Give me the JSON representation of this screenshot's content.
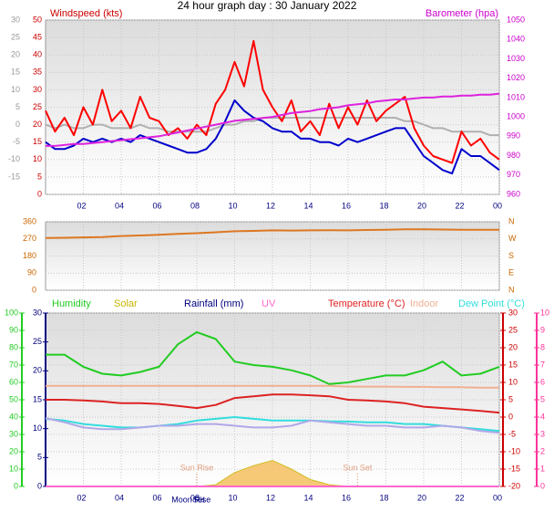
{
  "chart_data": [
    {
      "type": "line",
      "title": "24 hour graph day : 30 January 2022",
      "ylabel": "Windspeed (kts)",
      "y2label": "Barometer (hpa)",
      "x": [
        0,
        0.5,
        1,
        1.5,
        2,
        2.5,
        3,
        3.5,
        4,
        4.5,
        5,
        5.5,
        6,
        6.5,
        7,
        7.5,
        8,
        8.5,
        9,
        9.5,
        10,
        10.5,
        11,
        11.5,
        12,
        12.5,
        13,
        13.5,
        14,
        14.5,
        15,
        15.5,
        16,
        16.5,
        17,
        17.5,
        18,
        18.5,
        19,
        19.5,
        20,
        20.5,
        21,
        21.5,
        22,
        22.5,
        23,
        23.5,
        24
      ],
      "xlim": [
        0,
        24
      ],
      "xticks": [
        {
          "value": 2,
          "label": "02"
        },
        {
          "value": 4,
          "label": "04"
        },
        {
          "value": 6,
          "label": "06"
        },
        {
          "value": 8,
          "label": "08"
        },
        10,
        12,
        14,
        16,
        18,
        20,
        22,
        {
          "value": 24,
          "label": "00"
        }
      ],
      "ylim": [
        0,
        50
      ],
      "yticks": [
        50,
        45,
        40,
        35,
        30,
        25,
        20,
        15,
        10,
        5,
        0
      ],
      "ycolor": "#cc0000",
      "y2lim": [
        960,
        1050
      ],
      "y2ticks": [
        1050,
        1040,
        1030,
        1020,
        1010,
        1000,
        990,
        980,
        970,
        960
      ],
      "y2color": "#cc00cc",
      "y3lim": [
        -20,
        30
      ],
      "y3ticks": [
        30,
        25,
        20,
        15,
        10,
        5,
        0,
        -5,
        -10,
        -15
      ],
      "y3color": "#999999",
      "grid": true,
      "series": [
        {
          "color": "#b0b0b0",
          "axis": "y3",
          "values": [
            0,
            -1,
            0,
            -1,
            -1,
            0,
            0,
            -1,
            -1,
            -1,
            0,
            -1,
            -1,
            -2,
            -2,
            -2,
            -2,
            -2,
            -1,
            0,
            0,
            1,
            1,
            2,
            2,
            2,
            2,
            2,
            2,
            2,
            2,
            2,
            2,
            2,
            2,
            2,
            2,
            2,
            1,
            1,
            0,
            -1,
            -1,
            -2,
            -2,
            -2,
            -2,
            -3,
            -3
          ]
        },
        {
          "color": "#ff0000",
          "axis": "y",
          "values": [
            24,
            18,
            22,
            17,
            25,
            20,
            30,
            21,
            24,
            19,
            28,
            22,
            21,
            17,
            19,
            16,
            20,
            17,
            26,
            30,
            38,
            31,
            44,
            30,
            25,
            21,
            27,
            18,
            21,
            17,
            26,
            19,
            25,
            20,
            27,
            21,
            24,
            26,
            28,
            19,
            14,
            11,
            10,
            9,
            18,
            14,
            16,
            12,
            10
          ]
        },
        {
          "color": "#0000cc",
          "axis": "y",
          "values": [
            15,
            13,
            13,
            14,
            16,
            15,
            16,
            15,
            16,
            15,
            17,
            16,
            15,
            14,
            13,
            12,
            12,
            13,
            16,
            21,
            27,
            24,
            22,
            21,
            19,
            18,
            18,
            16,
            16,
            15,
            15,
            14,
            16,
            15,
            16,
            17,
            18,
            19,
            19,
            15,
            11,
            9,
            7,
            6,
            13,
            11,
            11,
            9,
            7
          ]
        },
        {
          "color": "#dd22dd",
          "axis": "y2",
          "values": [
            985,
            985,
            985.5,
            986,
            986,
            986.5,
            987,
            987.5,
            988,
            988.5,
            989,
            989.5,
            990,
            991,
            992,
            993,
            994,
            995,
            996,
            997,
            998,
            998.5,
            999,
            999.5,
            1000,
            1001,
            1002,
            1002.5,
            1003,
            1004,
            1004.5,
            1005,
            1006,
            1006.5,
            1007,
            1008,
            1008.5,
            1009,
            1009,
            1009.5,
            1010,
            1010,
            1010.5,
            1010.5,
            1011,
            1011,
            1011.5,
            1011.5,
            1012
          ]
        }
      ]
    },
    {
      "type": "line",
      "x": [
        0,
        1,
        2,
        3,
        4,
        5,
        6,
        7,
        8,
        9,
        10,
        11,
        12,
        13,
        14,
        15,
        16,
        17,
        18,
        19,
        20,
        21,
        22,
        23,
        24
      ],
      "xlim": [
        0,
        24
      ],
      "xticks": [
        {
          "value": 2,
          "label": "02"
        },
        {
          "value": 4,
          "label": "04"
        },
        {
          "value": 6,
          "label": "06"
        },
        {
          "value": 8,
          "label": "08"
        },
        10,
        12,
        14,
        16,
        18,
        20,
        22,
        {
          "value": 24,
          "label": "00"
        }
      ],
      "ylim": [
        0,
        360
      ],
      "yticks": [
        360,
        270,
        180,
        90,
        0
      ],
      "ycolor": "#cc6600",
      "y2lim": [
        0,
        360
      ],
      "y2ticks": [
        {
          "value": 360,
          "label": "N"
        },
        {
          "value": 270,
          "label": "W"
        },
        {
          "value": 180,
          "label": "S"
        },
        {
          "value": 90,
          "label": "E"
        },
        {
          "value": 0,
          "label": "N"
        }
      ],
      "y2color": "#cc6600",
      "grid": true,
      "series": [
        {
          "color": "#dd7722",
          "axis": "y",
          "values": [
            275,
            276,
            278,
            280,
            285,
            288,
            292,
            296,
            300,
            305,
            310,
            312,
            315,
            314,
            315,
            316,
            315,
            317,
            318,
            320,
            320,
            319,
            318,
            318,
            318
          ]
        }
      ]
    },
    {
      "type": "line",
      "x": [
        0,
        1,
        2,
        3,
        4,
        5,
        6,
        7,
        8,
        9,
        10,
        11,
        12,
        13,
        14,
        15,
        16,
        17,
        18,
        19,
        20,
        21,
        22,
        23,
        24
      ],
      "xlim": [
        0,
        24
      ],
      "xticks": [
        {
          "value": 2,
          "label": "02"
        },
        {
          "value": 4,
          "label": "04"
        },
        {
          "value": 6,
          "label": "06"
        },
        {
          "value": 8,
          "label": "08"
        },
        10,
        12,
        14,
        16,
        18,
        20,
        22,
        {
          "value": 24,
          "label": "00"
        }
      ],
      "ylim": [
        0,
        100
      ],
      "yticks": [
        100,
        90,
        80,
        70,
        60,
        50,
        40,
        30,
        20,
        10,
        0
      ],
      "ycolor": "#22cc22",
      "y2lim": [
        -20,
        30
      ],
      "y2ticks": [
        30,
        25,
        20,
        15,
        10,
        5,
        0,
        -5,
        -10,
        -15,
        -20
      ],
      "y2color": "#cc0000",
      "y3lim": [
        0,
        30
      ],
      "y3ticks": [
        30,
        25,
        20,
        15,
        10,
        5,
        0
      ],
      "y3color": "#000080",
      "y4lim": [
        0,
        10
      ],
      "y4ticks": [
        10,
        9,
        8,
        7,
        6,
        5,
        4,
        3,
        2,
        1,
        0
      ],
      "y4color": "#ff3399",
      "grid": true,
      "series": [
        {
          "name": "Humidity",
          "color": "#22cc22",
          "axis": "y",
          "values": [
            76,
            76,
            69,
            65,
            64,
            66,
            69,
            82,
            89,
            85,
            72,
            70,
            69,
            67,
            64,
            59,
            60,
            62,
            64,
            64,
            67,
            72,
            64,
            65,
            69
          ]
        },
        {
          "name": "Solar",
          "color": "#c8b400",
          "fill": "#f5c060",
          "axis": "y",
          "kind": "area",
          "values": [
            0,
            0,
            0,
            0,
            0,
            0,
            0,
            0,
            0,
            1,
            8,
            12,
            15,
            10,
            4,
            1,
            0,
            0,
            0,
            0,
            0,
            0,
            0,
            0,
            0
          ]
        },
        {
          "name": "Rainfall (mm)",
          "color": "#000080",
          "axis": "y3",
          "values": [
            0,
            0,
            0,
            0,
            0,
            0,
            0,
            0,
            0,
            0,
            0,
            0,
            0,
            0,
            0,
            0,
            0,
            0,
            0,
            0,
            0,
            0,
            0,
            0,
            0
          ]
        },
        {
          "name": "UV",
          "color": "#ff66cc",
          "axis": "y4",
          "values": [
            0,
            0,
            0,
            0,
            0,
            0,
            0,
            0,
            0,
            0,
            0,
            0,
            0,
            0,
            0,
            0,
            0,
            0,
            0,
            0,
            0,
            0,
            0,
            0,
            0
          ]
        },
        {
          "name": "Temperature (°C)",
          "color": "#dd2222",
          "axis": "y2",
          "values": [
            5,
            5,
            4.8,
            4.5,
            4,
            4,
            3.8,
            3.2,
            2.6,
            3.5,
            5.5,
            6,
            6.5,
            6.5,
            6.3,
            6,
            5,
            4.8,
            4.5,
            4,
            3,
            2.6,
            2.2,
            1.8,
            1.3
          ]
        },
        {
          "name": "Indoor",
          "color": "#f0b090",
          "axis": "y2",
          "values": [
            9,
            9,
            9,
            9,
            9,
            9,
            9,
            9,
            9,
            9,
            9,
            9,
            9,
            9,
            9,
            9,
            8.8,
            8.8,
            8.8,
            8.7,
            8.7,
            8.6,
            8.6,
            8.5,
            8.5
          ]
        },
        {
          "name": "Dew Point (°C)",
          "color": "#33dddd",
          "axis": "y2",
          "values": [
            -0.5,
            -1,
            -2,
            -2.5,
            -3,
            -3,
            -2.5,
            -2,
            -1,
            -0.5,
            0,
            -0.5,
            -1,
            -1,
            -1,
            -1.2,
            -1.3,
            -1.5,
            -1.5,
            -2,
            -2,
            -2.5,
            -3,
            -3.5,
            -4
          ]
        },
        {
          "color": "#b0a8e8",
          "axis": "y2",
          "values": [
            -0.3,
            -1.5,
            -3,
            -3.5,
            -3.5,
            -3,
            -2.5,
            -2.5,
            -2,
            -2,
            -2.5,
            -3,
            -3,
            -2.5,
            -1,
            -1.5,
            -2,
            -2.5,
            -2.5,
            -3,
            -3,
            -2.5,
            -3,
            -4,
            -4.5
          ]
        }
      ],
      "sun_annotations": [
        {
          "text": "Sun Rise",
          "x": 8
        },
        {
          "text": "Sun Set",
          "x": 16.5
        }
      ],
      "moon_annotations": [
        {
          "text": "Moon Rise",
          "x": 7.7
        },
        {
          "text": "Set",
          "x": 8.1
        }
      ]
    }
  ]
}
